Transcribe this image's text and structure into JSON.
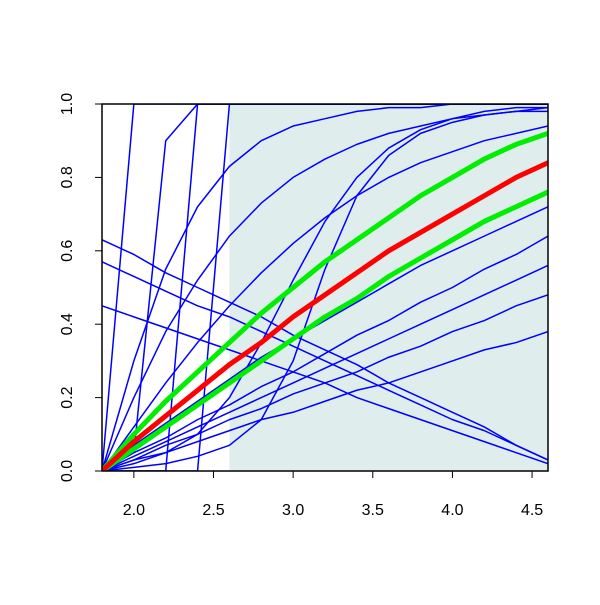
{
  "chart_data": {
    "type": "line",
    "x": [
      1.8,
      2.0,
      2.2,
      2.4,
      2.6,
      2.8,
      3.0,
      3.2,
      3.4,
      3.6,
      3.8,
      4.0,
      4.2,
      4.4,
      4.6
    ],
    "xlim": [
      1.8,
      4.6
    ],
    "ylim": [
      0,
      1
    ],
    "xticks": [
      {
        "value": 2,
        "label": "2.0"
      },
      2.5,
      {
        "value": 3,
        "label": "3.0"
      },
      3.5,
      {
        "value": 4,
        "label": "4.0"
      },
      4.5
    ],
    "yticks": [
      {
        "value": 0,
        "label": "0.0"
      },
      0.2,
      0.4,
      0.6,
      0.8,
      {
        "value": 1,
        "label": "1.0"
      }
    ],
    "shaded_region": {
      "x": [
        2.6,
        4.6
      ],
      "color": "#e0eded"
    },
    "series": [
      {
        "color": "#0000ff",
        "width": 1.5,
        "values": [
          0,
          1,
          1,
          1,
          1,
          1,
          1,
          1,
          1,
          1,
          1,
          1,
          1,
          1,
          1
        ]
      },
      {
        "color": "#0000ff",
        "width": 1.5,
        "values": [
          0,
          0.05,
          0.9,
          1,
          1,
          1,
          1,
          1,
          1,
          1,
          1,
          1,
          1,
          1,
          1
        ]
      },
      {
        "color": "#0000ff",
        "width": 1.5,
        "values": [
          0,
          0,
          0,
          1,
          1,
          1,
          1,
          1,
          1,
          1,
          1,
          1,
          1,
          1,
          1
        ]
      },
      {
        "color": "#0000ff",
        "width": 1.5,
        "values": [
          0,
          0,
          0,
          0,
          1,
          1,
          1,
          1,
          1,
          1,
          1,
          1,
          1,
          1,
          1
        ]
      },
      {
        "color": "#0000ff",
        "width": 1.5,
        "values": [
          0,
          0.3,
          0.55,
          0.72,
          0.83,
          0.9,
          0.94,
          0.96,
          0.98,
          0.99,
          0.99,
          1,
          1,
          1,
          1
        ]
      },
      {
        "color": "#0000ff",
        "width": 1.5,
        "values": [
          0,
          0.2,
          0.38,
          0.52,
          0.64,
          0.73,
          0.8,
          0.85,
          0.89,
          0.92,
          0.94,
          0.96,
          0.97,
          0.98,
          0.98
        ]
      },
      {
        "color": "#0000ff",
        "width": 1.5,
        "values": [
          0,
          0.12,
          0.24,
          0.35,
          0.45,
          0.54,
          0.62,
          0.69,
          0.75,
          0.8,
          0.84,
          0.87,
          0.9,
          0.92,
          0.94
        ]
      },
      {
        "color": "#0000ff",
        "width": 1.5,
        "values": [
          0,
          0.01,
          0.02,
          0.04,
          0.07,
          0.14,
          0.3,
          0.55,
          0.75,
          0.86,
          0.92,
          0.95,
          0.97,
          0.98,
          0.99
        ]
      },
      {
        "color": "#0000ff",
        "width": 1.5,
        "values": [
          0,
          0.02,
          0.05,
          0.1,
          0.2,
          0.35,
          0.52,
          0.68,
          0.8,
          0.88,
          0.93,
          0.96,
          0.98,
          0.99,
          0.99
        ]
      },
      {
        "color": "#0000ff",
        "width": 1.5,
        "values": [
          0.63,
          0.59,
          0.54,
          0.5,
          0.46,
          0.42,
          0.37,
          0.33,
          0.29,
          0.24,
          0.2,
          0.16,
          0.12,
          0.07,
          0.03
        ]
      },
      {
        "color": "#0000ff",
        "width": 1.5,
        "values": [
          0.57,
          0.53,
          0.49,
          0.45,
          0.42,
          0.38,
          0.34,
          0.3,
          0.26,
          0.22,
          0.18,
          0.14,
          0.11,
          0.07,
          0.03
        ]
      },
      {
        "color": "#0000ff",
        "width": 1.5,
        "values": [
          0.45,
          0.42,
          0.39,
          0.36,
          0.33,
          0.3,
          0.27,
          0.24,
          0.2,
          0.17,
          0.14,
          0.11,
          0.08,
          0.05,
          0.02
        ]
      },
      {
        "color": "#0000ff",
        "width": 1.5,
        "values": [
          0,
          0.03,
          0.05,
          0.08,
          0.11,
          0.14,
          0.16,
          0.19,
          0.22,
          0.24,
          0.27,
          0.3,
          0.33,
          0.35,
          0.38
        ]
      },
      {
        "color": "#0000ff",
        "width": 1.5,
        "values": [
          0,
          0.03,
          0.07,
          0.1,
          0.14,
          0.17,
          0.21,
          0.24,
          0.27,
          0.31,
          0.34,
          0.38,
          0.41,
          0.45,
          0.48
        ]
      },
      {
        "color": "#0000ff",
        "width": 1.5,
        "values": [
          0,
          0.04,
          0.08,
          0.12,
          0.16,
          0.2,
          0.24,
          0.28,
          0.32,
          0.36,
          0.4,
          0.44,
          0.48,
          0.52,
          0.56
        ]
      },
      {
        "color": "#0000ff",
        "width": 1.5,
        "values": [
          0,
          0.05,
          0.09,
          0.14,
          0.18,
          0.23,
          0.27,
          0.32,
          0.37,
          0.41,
          0.46,
          0.5,
          0.55,
          0.59,
          0.64
        ]
      },
      {
        "color": "#0000ff",
        "width": 1.5,
        "values": [
          0,
          0.07,
          0.13,
          0.19,
          0.25,
          0.31,
          0.36,
          0.41,
          0.46,
          0.51,
          0.56,
          0.6,
          0.64,
          0.68,
          0.72
        ]
      },
      {
        "color": "#00ee00",
        "width": 5,
        "values": [
          0,
          0.1,
          0.19,
          0.27,
          0.35,
          0.43,
          0.5,
          0.57,
          0.63,
          0.69,
          0.75,
          0.8,
          0.85,
          0.89,
          0.92
        ]
      },
      {
        "color": "#00ee00",
        "width": 5,
        "values": [
          0,
          0.06,
          0.12,
          0.18,
          0.24,
          0.3,
          0.36,
          0.42,
          0.47,
          0.53,
          0.58,
          0.63,
          0.68,
          0.72,
          0.76
        ]
      },
      {
        "color": "#ff0000",
        "width": 5,
        "values": [
          0,
          0.08,
          0.15,
          0.22,
          0.29,
          0.35,
          0.42,
          0.48,
          0.54,
          0.6,
          0.65,
          0.7,
          0.75,
          0.8,
          0.84
        ]
      }
    ]
  }
}
